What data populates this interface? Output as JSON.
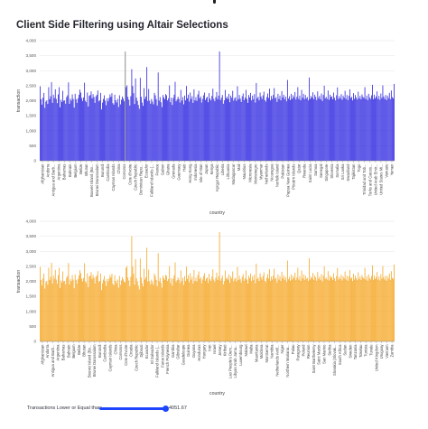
{
  "page": {
    "title": "Client Side Filtering using Altair Selections"
  },
  "slider": {
    "label": "Transactions Lower or Equal than:",
    "value": "4051.67",
    "fraction": 1.0
  },
  "colors": {
    "top_bars": "#2c24e0",
    "bottom_bars": "#f5a623",
    "slider": "#1f46ff",
    "selection_rule": "#9a9a9a"
  },
  "chart_data": [
    {
      "type": "bar",
      "xlabel": "country",
      "ylabel": "transaction",
      "ylim": [
        0,
        4000
      ],
      "yticks": [
        "0",
        "500",
        "1,000",
        "1,500",
        "2,000",
        "2,500",
        "3,000",
        "3,500",
        "4,000"
      ],
      "grid": true,
      "color": "#2c24e0",
      "selected_category": "China",
      "tick_labels": [
        "Afghanistan",
        "Andorra",
        "Antigua and Barb...",
        "Argentina",
        "Bahamas",
        "Bahrain",
        "Belgium",
        "Belize",
        "Bhutan",
        "Bouvet Island (Bo...",
        "Brunei Darussalam",
        "Burundi",
        "Cambodia",
        "Cayman Islands",
        "China",
        "Comoros",
        "Cote d'Ivoire",
        "Czech Republic",
        "Dominican Repu...",
        "Ecuador",
        "Falkland Islands (...",
        "France",
        "Gabon",
        "Ghana",
        "Grenada",
        "Guernsey",
        "Haiti",
        "Hong Kong",
        "Indonesia",
        "Isle of Man",
        "Japan",
        "Kenya",
        "Kyrgyz Republic",
        "Liberia",
        "Lithuania",
        "Madagascar",
        "Mali",
        "Mauritius",
        "Micronesia",
        "Montenegro",
        "Myanmar",
        "Netherlands",
        "Nicaragua",
        "Norfolk Island",
        "Pakistan",
        "Papua New Guinea",
        "Pitcairn Islands",
        "Qatar",
        "Rwanda",
        "Saint Lucia",
        "Samoa",
        "Senegal",
        "Singapore",
        "Slovenia",
        "Somalia",
        "Sri Lanka",
        "Swaziland",
        "Tajikistan",
        "Togo",
        "Trinidad and Tob...",
        "Turks and Caicos...",
        "United Arab Emir...",
        "United States Mi...",
        "Vanuatu",
        "Yemen"
      ],
      "values": [
        2480,
        2050,
        1870,
        2100,
        2260,
        1760,
        1970,
        2010,
        1890,
        2450,
        2050,
        2150,
        2620,
        1930,
        2200,
        2090,
        2380,
        2060,
        1920,
        2210,
        2450,
        1780,
        2030,
        1960,
        2330,
        2000,
        2010,
        1900,
        2120,
        2180,
        2610,
        1900,
        2070,
        2000,
        2210,
        2060,
        1770,
        2230,
        2050,
        1930,
        2080,
        2200,
        2370,
        2270,
        2090,
        1990,
        2110,
        2600,
        2000,
        1950,
        2270,
        1810,
        2160,
        2190,
        2310,
        2080,
        2220,
        2120,
        1930,
        2150,
        2200,
        2340,
        1980,
        2010,
        2260,
        1710,
        1940,
        2060,
        2180,
        2000,
        1850,
        2080,
        1980,
        2090,
        2210,
        2130,
        2250,
        1920,
        1870,
        2200,
        2010,
        1940,
        2060,
        1790,
        2180,
        1880,
        2030,
        2140,
        2070,
        1980,
        1970,
        2450,
        2510,
        2130,
        2030,
        1840,
        2150,
        3050,
        2490,
        2250,
        1890,
        2740,
        2100,
        1990,
        1860,
        1730,
        2760,
        2130,
        1940,
        1830,
        2420,
        2060,
        2140,
        3120,
        1990,
        2390,
        2000,
        1900,
        2060,
        1970,
        1880,
        2260,
        2180,
        2050,
        1840,
        2940,
        2000,
        2120,
        1950,
        1790,
        2190,
        2110,
        2050,
        2220,
        2180,
        2010,
        2080,
        2510,
        1950,
        2100,
        1860,
        2090,
        2200,
        2630,
        1980,
        2040,
        2130,
        2060,
        1940,
        2360,
        2000,
        2120,
        1880,
        2170,
        2010,
        2490,
        2080,
        2200,
        1970,
        2270,
        2060,
        2150,
        1930,
        2380,
        2010,
        2120,
        1990,
        2210,
        2330,
        2080,
        2140,
        1940,
        2060,
        2180,
        2270,
        2020,
        2090,
        2130,
        1950,
        2250,
        2070,
        2010,
        2160,
        2400,
        2060,
        1980,
        2120,
        2290,
        2050,
        2170,
        3640,
        2020,
        2100,
        2190,
        1900,
        2010,
        2360,
        2080,
        2140,
        2060,
        2230,
        1950,
        2170,
        2100,
        2330,
        2000,
        2080,
        2120,
        1990,
        2480,
        2050,
        2190,
        2070,
        1960,
        2150,
        2240,
        2020,
        2100,
        2360,
        2060,
        1930,
        2190,
        2110,
        2260,
        2010,
        2170,
        2050,
        2220,
        1940,
        2590,
        2080,
        2130,
        2010,
        2270,
        2140,
        2060,
        2180,
        2300,
        2020,
        1970,
        2120,
        2240,
        2090,
        2400,
        2010,
        2160,
        2060,
        2190,
        2420,
        2080,
        2120,
        1960,
        2230,
        2060,
        2170,
        2010,
        2320,
        2110,
        2200,
        2050,
        2140,
        1980,
        2690,
        2070,
        2150,
        2020,
        2230,
        2060,
        2180,
        2110,
        2290,
        2040,
        2130,
        2450,
        2060,
        2170,
        2010,
        2360,
        2100,
        2230,
        2050,
        2190,
        2080,
        2120,
        2010,
        2770,
        2060,
        2160,
        2100,
        2280,
        2050,
        2200,
        2130,
        2020,
        2310,
        2090,
        2160,
        2050,
        2240,
        1990,
        2190,
        2500,
        2080,
        2130,
        2060,
        2340,
        2030,
        2200,
        2120,
        2150,
        2050,
        2270,
        2100,
        2010,
        2180,
        2440,
        2060,
        2150,
        2080,
        2220,
        2030,
        2170,
        2100,
        2330,
        2060,
        2190,
        2020,
        2160,
        2380,
        2090,
        2130,
        2010,
        2250,
        2060,
        2190,
        2110,
        2040,
        2300,
        2080,
        2160,
        2050,
        2210,
        2130,
        2090,
        2450,
        2060,
        2170,
        2020,
        2230,
        2110,
        2060,
        2180,
        2530,
        2050,
        2200,
        2080,
        2140,
        2310,
        2060,
        2160,
        2030,
        2240,
        2090,
        2510,
        2140,
        2060,
        2190,
        2020,
        2170,
        2090,
        2260,
        2050,
        2340,
        2120,
        2080,
        2560
      ]
    },
    {
      "type": "bar",
      "xlabel": "country",
      "ylabel": "transaction",
      "ylim": [
        0,
        4000
      ],
      "yticks": [
        "0",
        "500",
        "1,000",
        "1,500",
        "2,000",
        "2,500",
        "3,000",
        "3,500",
        "4,000"
      ],
      "grid": true,
      "color": "#f5a623",
      "tick_labels": [
        "Afghanistan",
        "Andorra",
        "Antigua and Barb...",
        "Argentina",
        "Bahamas",
        "Bahrain",
        "Belgium",
        "Belize",
        "Bhutan",
        "Bouvet Island (Bo...",
        "Brunei Darussalam",
        "Burundi",
        "Cambodia",
        "Cayman Islands",
        "China",
        "Comoros",
        "Cote d'Ivoire",
        "Croatia",
        "Czech Republic",
        "Djibouti",
        "Ecuador",
        "El Salvador",
        "Falkland Islands (...",
        "Faroe Islands",
        "French Polynesia",
        "Gambia",
        "Gibraltar",
        "Guadeloupe",
        "Guinea",
        "Guyana",
        "Honduras",
        "Hungary",
        "Iran",
        "Israel",
        "Jersey",
        "Kiribati",
        "Lao People's Dem...",
        "Libyan Arab Jama...",
        "Luxembourg",
        "Malawi",
        "Malta",
        "Mauritania",
        "Moldova",
        "Montserrat",
        "Namibia",
        "Netherlands Antil...",
        "Niger",
        "Northern Mariana...",
        "Palau",
        "Paraguay",
        "Poland",
        "Reunion",
        "Saint Barthelemy",
        "Saint Martin",
        "San Marino",
        "Serbia",
        "Slovakia (Slovak...",
        "South Africa",
        "Sudan",
        "Sweden",
        "Tanzania",
        "Tokelau",
        "Tunisia",
        "Tuvalu",
        "United Kingdom",
        "Uruguay",
        "Vietnam",
        "Zambia"
      ],
      "values": [
        2480,
        2050,
        1870,
        2100,
        2260,
        1760,
        1970,
        2010,
        1890,
        2450,
        2050,
        2150,
        2620,
        1930,
        2200,
        2090,
        2380,
        2060,
        1920,
        2210,
        2450,
        1780,
        2030,
        1960,
        2330,
        2000,
        2010,
        1900,
        2120,
        2180,
        2610,
        1900,
        2070,
        2000,
        2210,
        2060,
        1770,
        2230,
        2050,
        1930,
        2080,
        2200,
        2370,
        2270,
        2090,
        1990,
        2110,
        2600,
        2000,
        1950,
        2270,
        1810,
        2160,
        2190,
        2310,
        2080,
        2220,
        2120,
        1930,
        2150,
        2200,
        2340,
        1980,
        2010,
        2260,
        1710,
        1940,
        2060,
        2180,
        2000,
        1850,
        2080,
        1980,
        2090,
        2210,
        2130,
        2250,
        1920,
        1870,
        2200,
        2010,
        1940,
        2060,
        1790,
        2180,
        1880,
        2030,
        2140,
        2070,
        1980,
        1970,
        2450,
        2510,
        2130,
        2030,
        1840,
        2150,
        3500,
        2490,
        2250,
        1890,
        2740,
        2100,
        1990,
        1860,
        1730,
        2760,
        2130,
        1940,
        1830,
        2420,
        2060,
        2140,
        3120,
        1990,
        2390,
        2000,
        1900,
        2060,
        1970,
        1880,
        2260,
        2180,
        2050,
        1840,
        2940,
        2000,
        2120,
        1950,
        1790,
        2190,
        2110,
        2050,
        2220,
        2180,
        2010,
        2080,
        2510,
        1950,
        2100,
        1860,
        2090,
        2200,
        2630,
        1980,
        2040,
        2130,
        2060,
        1940,
        2360,
        2000,
        2120,
        1880,
        2170,
        2010,
        2490,
        2080,
        2200,
        1970,
        2270,
        2060,
        2150,
        1930,
        2380,
        2010,
        2120,
        1990,
        2210,
        2330,
        2080,
        2140,
        1940,
        2060,
        2180,
        2270,
        2020,
        2090,
        2130,
        1950,
        2250,
        2070,
        2010,
        2160,
        2400,
        2060,
        1980,
        2120,
        2290,
        2050,
        2170,
        3640,
        2020,
        2100,
        2190,
        1900,
        2010,
        2360,
        2080,
        2140,
        2060,
        2230,
        1950,
        2170,
        2100,
        2330,
        2000,
        2080,
        2120,
        1990,
        2480,
        2050,
        2190,
        2070,
        1960,
        2150,
        2240,
        2020,
        2100,
        2360,
        2060,
        1930,
        2190,
        2110,
        2260,
        2010,
        2170,
        2050,
        2220,
        1940,
        2590,
        2080,
        2130,
        2010,
        2270,
        2140,
        2060,
        2180,
        2300,
        2020,
        1970,
        2120,
        2240,
        2090,
        2400,
        2010,
        2160,
        2060,
        2190,
        2420,
        2080,
        2120,
        1960,
        2230,
        2060,
        2170,
        2010,
        2320,
        2110,
        2200,
        2050,
        2140,
        1980,
        2690,
        2070,
        2150,
        2020,
        2230,
        2060,
        2180,
        2110,
        2290,
        2040,
        2130,
        2450,
        2060,
        2170,
        2010,
        2360,
        2100,
        2230,
        2050,
        2190,
        2080,
        2120,
        2010,
        2770,
        2060,
        2160,
        2100,
        2280,
        2050,
        2200,
        2130,
        2020,
        2310,
        2090,
        2160,
        2050,
        2240,
        1990,
        2190,
        2500,
        2080,
        2130,
        2060,
        2340,
        2030,
        2200,
        2120,
        2150,
        2050,
        2270,
        2100,
        2010,
        2180,
        2440,
        2060,
        2150,
        2080,
        2220,
        2030,
        2170,
        2100,
        2330,
        2060,
        2190,
        2020,
        2160,
        2380,
        2090,
        2130,
        2010,
        2250,
        2060,
        2190,
        2110,
        2040,
        2300,
        2080,
        2160,
        2050,
        2210,
        2130,
        2090,
        2450,
        2060,
        2170,
        2020,
        2230,
        2110,
        2060,
        2180,
        2530,
        2050,
        2200,
        2080,
        2140,
        2310,
        2060,
        2160,
        2030,
        2240,
        2090,
        2510,
        2140,
        2060,
        2190,
        2020,
        2170,
        2090,
        2260,
        2050,
        2340,
        2120,
        2080,
        2560
      ]
    }
  ]
}
